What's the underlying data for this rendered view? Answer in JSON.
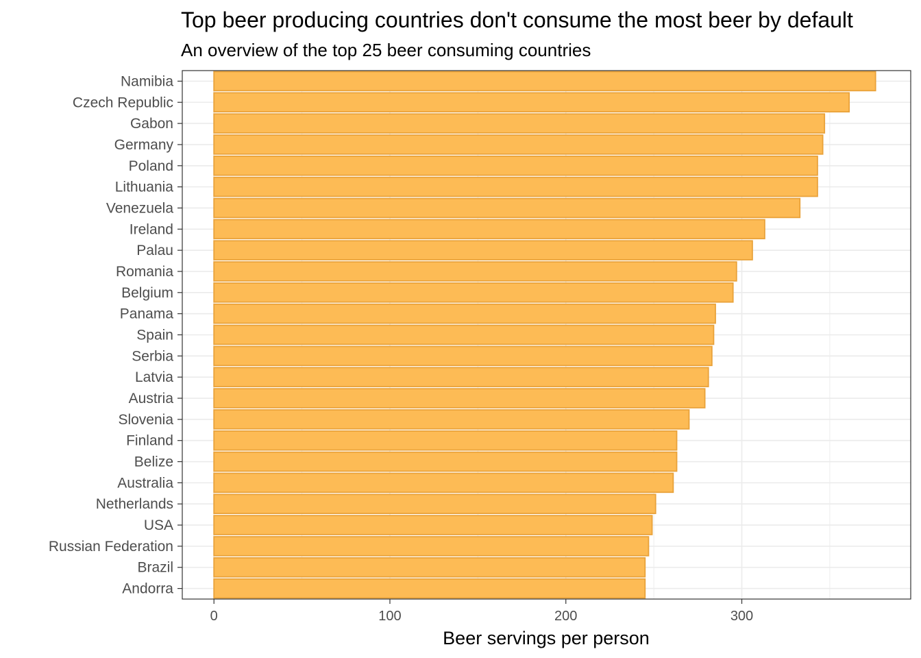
{
  "chart_data": {
    "type": "bar",
    "orientation": "horizontal",
    "title": "Top beer producing countries don't consume the most beer by default",
    "subtitle": "An overview of the top 25 beer consuming countries",
    "xlabel": "Beer servings per person",
    "ylabel": "",
    "xlim": [
      -18,
      396
    ],
    "xticks": [
      0,
      100,
      200,
      300
    ],
    "grid": true,
    "bar_fill": "#FDBB55",
    "bar_stroke": "#E9A23A",
    "categories": [
      "Namibia",
      "Czech Republic",
      "Gabon",
      "Germany",
      "Poland",
      "Lithuania",
      "Venezuela",
      "Ireland",
      "Palau",
      "Romania",
      "Belgium",
      "Panama",
      "Spain",
      "Serbia",
      "Latvia",
      "Austria",
      "Slovenia",
      "Finland",
      "Belize",
      "Australia",
      "Netherlands",
      "USA",
      "Russian Federation",
      "Brazil",
      "Andorra"
    ],
    "values": [
      376,
      361,
      347,
      346,
      343,
      343,
      333,
      313,
      306,
      297,
      295,
      285,
      284,
      283,
      281,
      279,
      270,
      263,
      263,
      261,
      251,
      249,
      247,
      245,
      245
    ]
  }
}
